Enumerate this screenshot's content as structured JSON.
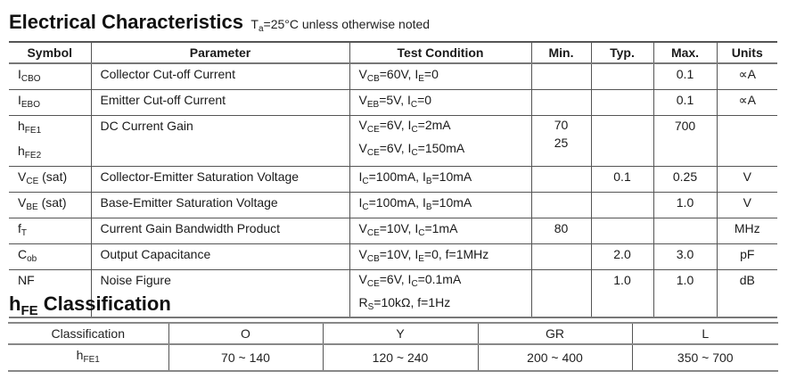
{
  "header": {
    "title": "Electrical Characteristics",
    "note_prefix": "T",
    "note_sub": "a",
    "note_suffix": "=25°C unless otherwise noted"
  },
  "ec_table": {
    "columns": [
      "Symbol",
      "Parameter",
      "Test Condition",
      "Min.",
      "Typ.",
      "Max.",
      "Units"
    ],
    "rows": [
      {
        "symbol": [
          {
            "base": "I",
            "sub": "CBO"
          }
        ],
        "parameter": "Collector Cut-off Current",
        "conditions": [
          [
            {
              "t": "V"
            },
            {
              "s": "CB"
            },
            {
              "t": "=60V, I"
            },
            {
              "s": "E"
            },
            {
              "t": "=0"
            }
          ]
        ],
        "min": [
          ""
        ],
        "typ": [
          ""
        ],
        "max": [
          "0.1"
        ],
        "units": "∝A"
      },
      {
        "symbol": [
          {
            "base": "I",
            "sub": "EBO"
          }
        ],
        "parameter": "Emitter Cut-off Current",
        "conditions": [
          [
            {
              "t": "V"
            },
            {
              "s": "EB"
            },
            {
              "t": "=5V, I"
            },
            {
              "s": "C"
            },
            {
              "t": "=0"
            }
          ]
        ],
        "min": [
          ""
        ],
        "typ": [
          ""
        ],
        "max": [
          "0.1"
        ],
        "units": "∝A"
      },
      {
        "symbol": [
          {
            "base": "h",
            "sub": "FE1"
          },
          {
            "base": "h",
            "sub": "FE2"
          }
        ],
        "parameter": "DC Current Gain",
        "conditions": [
          [
            {
              "t": "V"
            },
            {
              "s": "CE"
            },
            {
              "t": "=6V, I"
            },
            {
              "s": "C"
            },
            {
              "t": "=2mA"
            }
          ],
          [
            {
              "t": "V"
            },
            {
              "s": "CE"
            },
            {
              "t": "=6V, I"
            },
            {
              "s": "C"
            },
            {
              "t": "=150mA"
            }
          ]
        ],
        "min": [
          "70",
          "25"
        ],
        "typ": [
          ""
        ],
        "max": [
          "700"
        ],
        "units": ""
      },
      {
        "symbol": [
          {
            "base": "V",
            "sub": "CE",
            "after": " (sat)"
          }
        ],
        "parameter": "Collector-Emitter Saturation Voltage",
        "conditions": [
          [
            {
              "t": "I"
            },
            {
              "s": "C"
            },
            {
              "t": "=100mA, I"
            },
            {
              "s": "B"
            },
            {
              "t": "=10mA"
            }
          ]
        ],
        "min": [
          ""
        ],
        "typ": [
          "0.1"
        ],
        "max": [
          "0.25"
        ],
        "units": "V"
      },
      {
        "symbol": [
          {
            "base": "V",
            "sub": "BE",
            "after": " (sat)"
          }
        ],
        "parameter": "Base-Emitter Saturation Voltage",
        "conditions": [
          [
            {
              "t": "I"
            },
            {
              "s": "C"
            },
            {
              "t": "=100mA, I"
            },
            {
              "s": "B"
            },
            {
              "t": "=10mA"
            }
          ]
        ],
        "min": [
          ""
        ],
        "typ": [
          ""
        ],
        "max": [
          "1.0"
        ],
        "units": "V"
      },
      {
        "symbol": [
          {
            "base": "f",
            "sub": "T"
          }
        ],
        "parameter": "Current Gain Bandwidth Product",
        "conditions": [
          [
            {
              "t": "V"
            },
            {
              "s": "CE"
            },
            {
              "t": "=10V, I"
            },
            {
              "s": "C"
            },
            {
              "t": "=1mA"
            }
          ]
        ],
        "min": [
          "80"
        ],
        "typ": [
          ""
        ],
        "max": [
          ""
        ],
        "units": "MHz"
      },
      {
        "symbol": [
          {
            "base": "C",
            "sub": "ob"
          }
        ],
        "parameter": "Output Capacitance",
        "conditions": [
          [
            {
              "t": "V"
            },
            {
              "s": "CB"
            },
            {
              "t": "=10V, I"
            },
            {
              "s": "E"
            },
            {
              "t": "=0, f=1MHz"
            }
          ]
        ],
        "min": [
          ""
        ],
        "typ": [
          "2.0"
        ],
        "max": [
          "3.0"
        ],
        "units": "pF"
      },
      {
        "symbol": [
          {
            "base": "NF",
            "sub": ""
          }
        ],
        "parameter": "Noise Figure",
        "conditions": [
          [
            {
              "t": "V"
            },
            {
              "s": "CE"
            },
            {
              "t": "=6V, I"
            },
            {
              "s": "C"
            },
            {
              "t": "=0.1mA"
            }
          ],
          [
            {
              "t": "R"
            },
            {
              "s": "S"
            },
            {
              "t": "=10kΩ, f=1Hz"
            }
          ]
        ],
        "min": [
          ""
        ],
        "typ": [
          "1.0"
        ],
        "max": [
          "1.0"
        ],
        "units": "dB"
      }
    ]
  },
  "classification": {
    "title_base": "h",
    "title_sub": "FE",
    "title_rest": " Classification",
    "header_label": "Classification",
    "row_label_base": "h",
    "row_label_sub": "FE1",
    "classes": [
      "O",
      "Y",
      "GR",
      "L"
    ],
    "ranges": [
      "70 ~ 140",
      "120 ~ 240",
      "200 ~ 400",
      "350 ~ 700"
    ]
  }
}
